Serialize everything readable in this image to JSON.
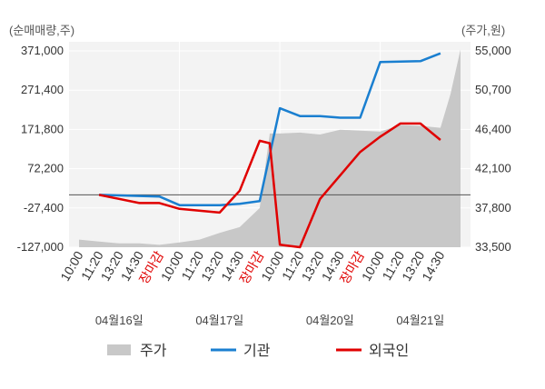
{
  "chart_data": {
    "type": "line",
    "left_axis_unit": "(순매매량,주)",
    "right_axis_unit": "(주가,원)",
    "left_ticks": [
      "371,000",
      "271,400",
      "171,800",
      "72,200",
      "-27,400",
      "-127,000"
    ],
    "left_range": [
      -127000,
      371000
    ],
    "right_ticks": [
      "55,000",
      "50,700",
      "46,400",
      "42,100",
      "37,800",
      "33,500"
    ],
    "right_range": [
      33500,
      55000
    ],
    "x_slot_count": 20,
    "x_ticks": [
      {
        "label": "10:00",
        "close": false
      },
      {
        "label": "11:20",
        "close": false
      },
      {
        "label": "13:20",
        "close": false
      },
      {
        "label": "14:30",
        "close": false
      },
      {
        "label": "장마감",
        "close": true
      },
      {
        "label": "10:00",
        "close": false
      },
      {
        "label": "11:20",
        "close": false
      },
      {
        "label": "13:20",
        "close": false
      },
      {
        "label": "14:30",
        "close": false
      },
      {
        "label": "장마감",
        "close": true
      },
      {
        "label": "10:00",
        "close": false
      },
      {
        "label": "11:20",
        "close": false
      },
      {
        "label": "13:20",
        "close": false
      },
      {
        "label": "14:30",
        "close": false
      },
      {
        "label": "장마감",
        "close": true
      },
      {
        "label": "10:00",
        "close": false
      },
      {
        "label": "11:20",
        "close": false
      },
      {
        "label": "13:20",
        "close": false
      },
      {
        "label": "14:30",
        "close": false
      }
    ],
    "dates": [
      {
        "label": "04월16일",
        "slot": 2
      },
      {
        "label": "04월17일",
        "slot": 7
      },
      {
        "label": "04월20일",
        "slot": 12.5
      },
      {
        "label": "04월21일",
        "slot": 17
      }
    ],
    "day_boundaries": [
      5,
      10,
      15
    ],
    "legend": [
      {
        "name": "주가",
        "color": "#c8c8c8",
        "kind": "area"
      },
      {
        "name": "기관",
        "color": "#1a7fd0",
        "kind": "line"
      },
      {
        "name": "외국인",
        "color": "#e00000",
        "kind": "line"
      }
    ],
    "series": [
      {
        "name": "기관",
        "color": "#1a7fd0",
        "points": [
          [
            1,
            0
          ],
          [
            4,
            -4000
          ],
          [
            5,
            -25000
          ],
          [
            7,
            -25000
          ],
          [
            8,
            -22000
          ],
          [
            9,
            -15000
          ],
          [
            10,
            210000
          ],
          [
            11,
            191000
          ],
          [
            12,
            191000
          ],
          [
            13,
            187000
          ],
          [
            14,
            187000
          ],
          [
            15,
            322000
          ],
          [
            17,
            324000
          ],
          [
            18,
            343000
          ]
        ]
      },
      {
        "name": "외국인",
        "color": "#e00000",
        "points": [
          [
            1,
            0
          ],
          [
            3,
            -20000
          ],
          [
            4,
            -20000
          ],
          [
            5,
            -34000
          ],
          [
            7,
            -43000
          ],
          [
            8,
            10000
          ],
          [
            9,
            131000
          ],
          [
            9.5,
            125000
          ],
          [
            10,
            -121000
          ],
          [
            11,
            -127000
          ],
          [
            12,
            -10000
          ],
          [
            14,
            104000
          ],
          [
            15,
            141000
          ],
          [
            16,
            173000
          ],
          [
            17,
            173000
          ],
          [
            18,
            133000
          ]
        ]
      },
      {
        "name": "주가",
        "color": "#c8c8c8",
        "kind": "area",
        "points": [
          [
            0,
            34300
          ],
          [
            1,
            34100
          ],
          [
            2,
            33900
          ],
          [
            3,
            33900
          ],
          [
            4,
            33750
          ],
          [
            5,
            34000
          ],
          [
            6,
            34300
          ],
          [
            7,
            35000
          ],
          [
            8,
            35600
          ],
          [
            9,
            37600
          ],
          [
            9.5,
            45400
          ],
          [
            10,
            45400
          ],
          [
            11,
            45500
          ],
          [
            12,
            45300
          ],
          [
            13,
            45800
          ],
          [
            14,
            45700
          ],
          [
            15,
            45600
          ],
          [
            16,
            46300
          ],
          [
            17,
            46200
          ],
          [
            18,
            46000
          ],
          [
            18.5,
            49500
          ],
          [
            19,
            54200
          ]
        ]
      }
    ],
    "grid": true
  }
}
